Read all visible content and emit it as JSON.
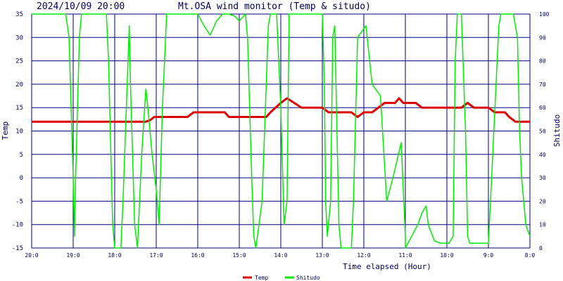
{
  "header": {
    "timestamp": "2024/10/09 20:00",
    "title": "Mt.OSA wind monitor (Temp & situdo)"
  },
  "chart_data": {
    "type": "line",
    "title": "Mt.OSA wind monitor (Temp & situdo)",
    "xlabel": "Time elapsed (Hour)",
    "ylabel_left": "Temp",
    "ylabel_right": "Shitudo",
    "x_ticks": [
      "20:0",
      "19:0",
      "18:0",
      "17:0",
      "16:0",
      "15:0",
      "14:0",
      "13:0",
      "12:0",
      "11:0",
      "10:0",
      "9:0",
      "8:0"
    ],
    "x_range": [
      0,
      12
    ],
    "y_left": {
      "range": [
        -15,
        35
      ],
      "ticks": [
        "-15",
        "-10",
        "-5",
        "0",
        "5",
        "10",
        "15",
        "20",
        "25",
        "30",
        "35"
      ]
    },
    "y_right": {
      "range": [
        0,
        100
      ],
      "ticks": [
        "0",
        "10",
        "20",
        "30",
        "40",
        "50",
        "60",
        "70",
        "80",
        "90",
        "100"
      ]
    },
    "grid": true,
    "legend_position": "bottom",
    "series": [
      {
        "name": "Temp",
        "axis": "left",
        "color": "#dd0000",
        "points": [
          [
            0,
            12
          ],
          [
            0.5,
            12
          ],
          [
            1,
            12
          ],
          [
            1.5,
            12
          ],
          [
            2,
            12
          ],
          [
            2.5,
            12
          ],
          [
            2.75,
            12
          ],
          [
            2.85,
            12.3
          ],
          [
            2.95,
            13
          ],
          [
            3.5,
            13
          ],
          [
            3.75,
            13
          ],
          [
            3.9,
            14
          ],
          [
            4.5,
            14
          ],
          [
            4.65,
            14
          ],
          [
            4.75,
            13
          ],
          [
            5.5,
            13
          ],
          [
            5.65,
            13
          ],
          [
            5.75,
            14
          ],
          [
            6,
            16
          ],
          [
            6.15,
            17
          ],
          [
            6.5,
            15
          ],
          [
            7,
            15
          ],
          [
            7.15,
            14
          ],
          [
            7.7,
            14
          ],
          [
            7.85,
            13
          ],
          [
            8,
            14
          ],
          [
            8.2,
            14
          ],
          [
            8.5,
            16
          ],
          [
            8.75,
            16
          ],
          [
            8.85,
            17
          ],
          [
            8.95,
            16
          ],
          [
            9.25,
            16
          ],
          [
            9.4,
            15
          ],
          [
            10,
            15
          ],
          [
            10.35,
            15
          ],
          [
            10.5,
            16
          ],
          [
            10.65,
            15
          ],
          [
            11,
            15
          ],
          [
            11.15,
            14
          ],
          [
            11.4,
            14
          ],
          [
            11.5,
            13
          ],
          [
            11.65,
            12
          ],
          [
            12,
            12
          ]
        ]
      },
      {
        "name": "Shitudo",
        "axis": "right",
        "color": "#00ee00",
        "points": [
          [
            0,
            100
          ],
          [
            0.82,
            100
          ],
          [
            0.9,
            90
          ],
          [
            1,
            30
          ],
          [
            1.03,
            5
          ],
          [
            1.06,
            30
          ],
          [
            1.15,
            90
          ],
          [
            1.2,
            100
          ],
          [
            1.8,
            100
          ],
          [
            1.85,
            80
          ],
          [
            1.95,
            10
          ],
          [
            2,
            0
          ],
          [
            2.15,
            0
          ],
          [
            2.2,
            20
          ],
          [
            2.35,
            95
          ],
          [
            2.38,
            70
          ],
          [
            2.48,
            10
          ],
          [
            2.55,
            0
          ],
          [
            2.65,
            40
          ],
          [
            2.75,
            68
          ],
          [
            2.8,
            60
          ],
          [
            2.9,
            40
          ],
          [
            3,
            25
          ],
          [
            3.07,
            10
          ],
          [
            3.15,
            60
          ],
          [
            3.25,
            100
          ],
          [
            3.55,
            100
          ],
          [
            4,
            100
          ],
          [
            4.15,
            95
          ],
          [
            4.3,
            91
          ],
          [
            4.45,
            97
          ],
          [
            4.6,
            100
          ],
          [
            4.75,
            100
          ],
          [
            4.9,
            99
          ],
          [
            5,
            97
          ],
          [
            5.1,
            99
          ],
          [
            5.15,
            100
          ],
          [
            5.2,
            90
          ],
          [
            5.3,
            30
          ],
          [
            5.35,
            5
          ],
          [
            5.4,
            0
          ],
          [
            5.55,
            20
          ],
          [
            5.7,
            95
          ],
          [
            5.75,
            100
          ],
          [
            5.9,
            100
          ],
          [
            6,
            60
          ],
          [
            6.08,
            10
          ],
          [
            6.15,
            20
          ],
          [
            6.2,
            100
          ],
          [
            6.6,
            100
          ],
          [
            7,
            100
          ],
          [
            7.05,
            70
          ],
          [
            7.08,
            20
          ],
          [
            7.12,
            5
          ],
          [
            7.2,
            20
          ],
          [
            7.25,
            90
          ],
          [
            7.3,
            95
          ],
          [
            7.4,
            10
          ],
          [
            7.45,
            0
          ],
          [
            7.7,
            0
          ],
          [
            7.75,
            20
          ],
          [
            7.85,
            90
          ],
          [
            8.05,
            95
          ],
          [
            8.2,
            70
          ],
          [
            8.4,
            65
          ],
          [
            8.55,
            20
          ],
          [
            8.7,
            30
          ],
          [
            8.9,
            45
          ],
          [
            9,
            5
          ],
          [
            9,
            0
          ],
          [
            9.15,
            5
          ],
          [
            9.3,
            10
          ],
          [
            9.4,
            15
          ],
          [
            9.5,
            18
          ],
          [
            9.55,
            10
          ],
          [
            9.7,
            3
          ],
          [
            9.85,
            2
          ],
          [
            10.05,
            2
          ],
          [
            10.15,
            5
          ],
          [
            10.2,
            80
          ],
          [
            10.25,
            100
          ],
          [
            10.35,
            100
          ],
          [
            10.45,
            50
          ],
          [
            10.5,
            5
          ],
          [
            10.55,
            2
          ],
          [
            10.8,
            2
          ],
          [
            11,
            2
          ],
          [
            11.05,
            20
          ],
          [
            11.25,
            95
          ],
          [
            11.3,
            100
          ],
          [
            11.6,
            100
          ],
          [
            11.7,
            90
          ],
          [
            11.75,
            50
          ],
          [
            11.8,
            30
          ],
          [
            11.9,
            10
          ],
          [
            12,
            5
          ]
        ]
      }
    ]
  }
}
